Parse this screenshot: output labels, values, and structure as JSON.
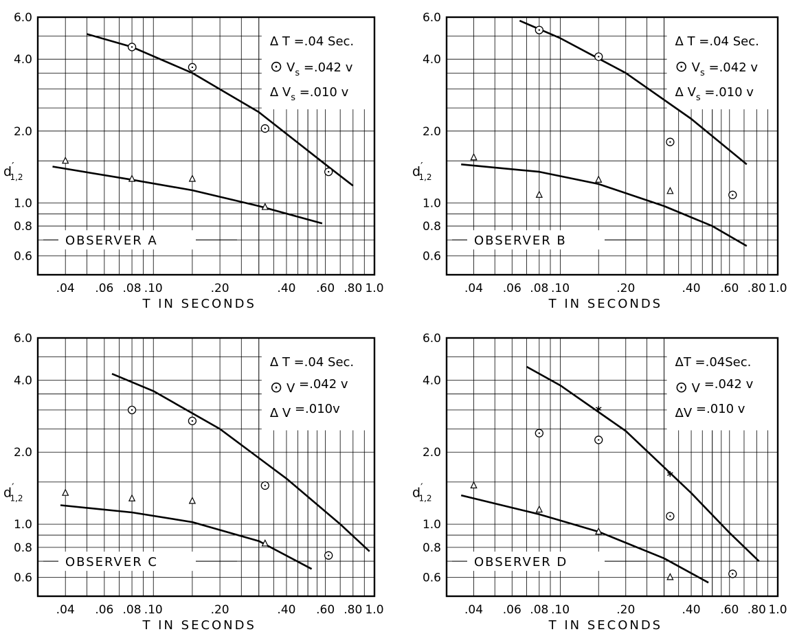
{
  "figure": {
    "xlabel": "T IN SECONDS",
    "ylabel_main": "d",
    "ylabel_prime": "′",
    "ylabel_sub": "1,2",
    "x_tick_labels": [
      ".04",
      ".06",
      ".08",
      ".10",
      ".20",
      ".40",
      ".60",
      ".80",
      "1.0"
    ],
    "x_tick_values": [
      0.04,
      0.06,
      0.08,
      0.1,
      0.2,
      0.4,
      0.6,
      0.8,
      1.0
    ],
    "y_tick_labels": [
      "0.6",
      "0.8",
      "1.0",
      "2.0",
      "4.0",
      "6.0"
    ],
    "y_tick_values": [
      0.6,
      0.8,
      1.0,
      2.0,
      4.0,
      6.0
    ]
  },
  "chart_data": [
    {
      "type": "scatter",
      "title": "OBSERVER A",
      "xlabel": "T IN SECONDS",
      "ylabel": "d′1,2",
      "x_scale": "log",
      "y_scale": "log",
      "xlim": [
        0.03,
        1.0
      ],
      "ylim": [
        0.5,
        6.0
      ],
      "grid": true,
      "legend_position": "top-right",
      "legend": {
        "line1": "Δ T =.04 Sec.",
        "c_sym": "⊙",
        "c_main": " V",
        "c_sub": "s",
        "c_val": " =.042 v",
        "t_sym": "Δ",
        "t_main": " V",
        "t_sub": "s",
        "t_val": " =.010 v"
      },
      "series": [
        {
          "marker": "circle",
          "points": [
            [
              0.08,
              4.5
            ],
            [
              0.15,
              3.7
            ],
            [
              0.32,
              2.05
            ],
            [
              0.62,
              1.35
            ]
          ]
        },
        {
          "marker": "triangle",
          "points": [
            [
              0.04,
              1.5
            ],
            [
              0.08,
              1.26
            ],
            [
              0.15,
              1.26
            ],
            [
              0.32,
              0.96
            ]
          ]
        }
      ],
      "curves": [
        {
          "points": [
            [
              0.05,
              5.1
            ],
            [
              0.08,
              4.5
            ],
            [
              0.15,
              3.5
            ],
            [
              0.3,
              2.4
            ],
            [
              0.6,
              1.45
            ],
            [
              0.8,
              1.18
            ]
          ]
        },
        {
          "points": [
            [
              0.035,
              1.42
            ],
            [
              0.08,
              1.25
            ],
            [
              0.15,
              1.13
            ],
            [
              0.3,
              0.97
            ],
            [
              0.58,
              0.82
            ]
          ]
        }
      ]
    },
    {
      "type": "scatter",
      "title": "OBSERVER B",
      "xlabel": "T IN SECONDS",
      "ylabel": "d′1,2",
      "x_scale": "log",
      "y_scale": "log",
      "xlim": [
        0.03,
        1.0
      ],
      "ylim": [
        0.5,
        6.0
      ],
      "grid": true,
      "legend_position": "top-right",
      "legend": {
        "line1": "Δ T =.04 Sec.",
        "c_sym": "⊙",
        "c_main": " V",
        "c_sub": "s",
        "c_val": " =.042 v",
        "t_sym": "Δ",
        "t_main": " V",
        "t_sub": "s",
        "t_val": " =.010 v"
      },
      "series": [
        {
          "marker": "circle",
          "points": [
            [
              0.08,
              5.3
            ],
            [
              0.15,
              4.1
            ],
            [
              0.32,
              1.8
            ],
            [
              0.62,
              1.08
            ]
          ]
        },
        {
          "marker": "triangle",
          "points": [
            [
              0.04,
              1.55
            ],
            [
              0.08,
              1.08
            ],
            [
              0.15,
              1.25
            ],
            [
              0.32,
              1.12
            ]
          ]
        }
      ],
      "curves": [
        {
          "points": [
            [
              0.065,
              5.8
            ],
            [
              0.1,
              4.9
            ],
            [
              0.2,
              3.5
            ],
            [
              0.4,
              2.25
            ],
            [
              0.72,
              1.45
            ]
          ]
        },
        {
          "points": [
            [
              0.035,
              1.45
            ],
            [
              0.08,
              1.35
            ],
            [
              0.15,
              1.2
            ],
            [
              0.3,
              0.97
            ],
            [
              0.5,
              0.8
            ],
            [
              0.72,
              0.66
            ]
          ]
        }
      ]
    },
    {
      "type": "scatter",
      "title": "OBSERVER C",
      "xlabel": "T IN SECONDS",
      "ylabel": "d′1,2",
      "x_scale": "log",
      "y_scale": "log",
      "xlim": [
        0.03,
        1.0
      ],
      "ylim": [
        0.5,
        6.0
      ],
      "grid": true,
      "legend_position": "top-right",
      "legend": {
        "line1": "Δ T =.04 Sec.",
        "c_sym": "⊙",
        "c_main": " V",
        "c_sub": "",
        "c_val": " =.042 v",
        "t_sym": "Δ",
        "t_main": " V",
        "t_sub": "",
        "t_val": " =.010v"
      },
      "series": [
        {
          "marker": "circle",
          "points": [
            [
              0.08,
              3.0
            ],
            [
              0.15,
              2.7
            ],
            [
              0.32,
              1.45
            ],
            [
              0.62,
              0.74
            ]
          ]
        },
        {
          "marker": "triangle",
          "points": [
            [
              0.04,
              1.35
            ],
            [
              0.08,
              1.28
            ],
            [
              0.15,
              1.25
            ],
            [
              0.32,
              0.83
            ]
          ]
        }
      ],
      "curves": [
        {
          "points": [
            [
              0.065,
              4.25
            ],
            [
              0.1,
              3.6
            ],
            [
              0.2,
              2.5
            ],
            [
              0.4,
              1.55
            ],
            [
              0.7,
              1.0
            ],
            [
              0.95,
              0.77
            ]
          ]
        },
        {
          "points": [
            [
              0.038,
              1.2
            ],
            [
              0.08,
              1.12
            ],
            [
              0.15,
              1.02
            ],
            [
              0.3,
              0.85
            ],
            [
              0.52,
              0.65
            ]
          ]
        }
      ]
    },
    {
      "type": "scatter",
      "title": "OBSERVER D",
      "xlabel": "T IN SECONDS",
      "ylabel": "d′1,2",
      "x_scale": "log",
      "y_scale": "log",
      "xlim": [
        0.03,
        1.0
      ],
      "ylim": [
        0.5,
        6.0
      ],
      "grid": true,
      "legend_position": "top-right",
      "legend": {
        "line1": "ΔT =.04Sec.",
        "c_sym": "⊙",
        "c_main": " V",
        "c_sub": "",
        "c_val": " =.042 v",
        "t_sym": "Δ",
        "t_main": "V",
        "t_sub": "",
        "t_val": " =.010 v"
      },
      "series": [
        {
          "marker": "circle",
          "points": [
            [
              0.08,
              2.4
            ],
            [
              0.15,
              2.25
            ],
            [
              0.32,
              1.08
            ],
            [
              0.62,
              0.62
            ]
          ]
        },
        {
          "marker": "triangle",
          "points": [
            [
              0.04,
              1.45
            ],
            [
              0.08,
              1.15
            ],
            [
              0.15,
              0.93
            ],
            [
              0.32,
              0.6
            ]
          ]
        },
        {
          "marker": "asterisk",
          "points": [
            [
              0.15,
              3.0
            ],
            [
              0.32,
              1.6
            ]
          ]
        }
      ],
      "curves": [
        {
          "points": [
            [
              0.07,
              4.55
            ],
            [
              0.1,
              3.8
            ],
            [
              0.2,
              2.45
            ],
            [
              0.4,
              1.35
            ],
            [
              0.6,
              0.92
            ],
            [
              0.82,
              0.7
            ]
          ]
        },
        {
          "points": [
            [
              0.035,
              1.32
            ],
            [
              0.08,
              1.1
            ],
            [
              0.15,
              0.93
            ],
            [
              0.3,
              0.72
            ],
            [
              0.48,
              0.57
            ]
          ]
        }
      ]
    }
  ]
}
